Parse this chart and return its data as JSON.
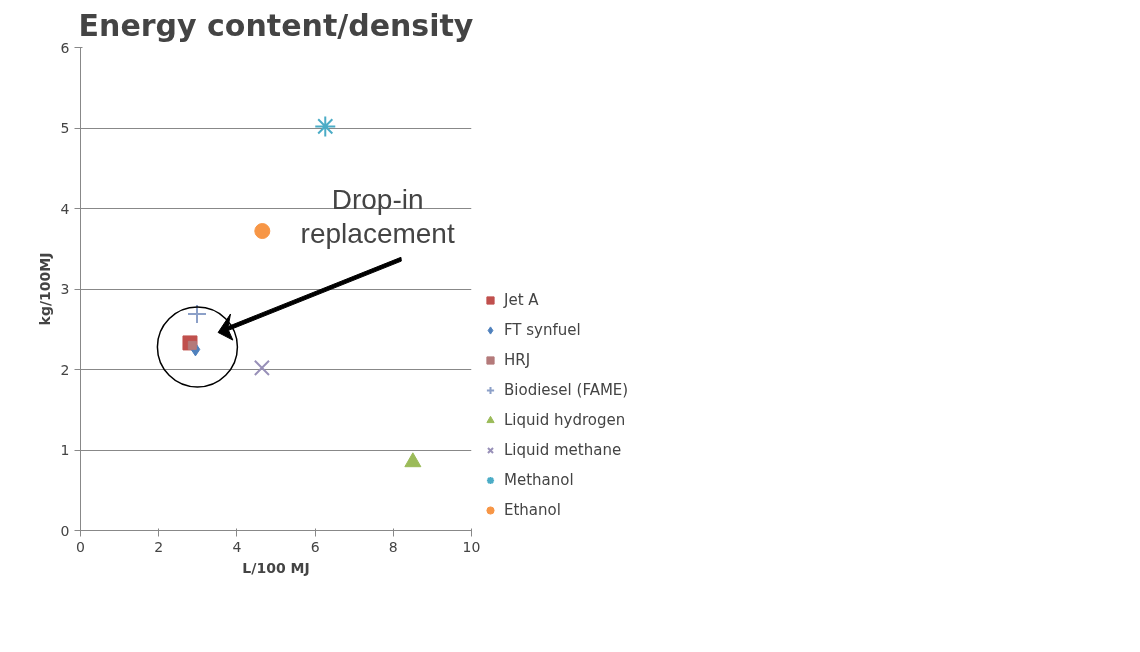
{
  "chart_data": {
    "type": "scatter",
    "title": "Energy content/density",
    "xlabel": "L/100 MJ",
    "ylabel": "kg/100MJ",
    "xlim": [
      0,
      10
    ],
    "xticks": [
      0,
      2,
      4,
      6,
      8,
      10
    ],
    "ylim": [
      0,
      6
    ],
    "yticks": [
      0,
      1,
      2,
      3,
      4,
      5,
      6
    ],
    "grid": "y",
    "legend": "right",
    "series": [
      {
        "name": "Jet A",
        "color": "#c0504d",
        "marker": "square",
        "x": [
          2.8
        ],
        "values": [
          2.33
        ]
      },
      {
        "name": "FT synfuel",
        "color": "#4f81bd",
        "marker": "diamond",
        "x": [
          2.94
        ],
        "values": [
          2.25
        ]
      },
      {
        "name": "HRJ",
        "color": "#b47a7a",
        "marker": "square",
        "x": [
          2.86
        ],
        "values": [
          2.3
        ]
      },
      {
        "name": "Biodiesel (FAME)",
        "color": "#8ca0c8",
        "marker": "cross",
        "x": [
          2.98
        ],
        "values": [
          2.69
        ]
      },
      {
        "name": "Liquid hydrogen",
        "color": "#9bbb59",
        "marker": "triangle",
        "x": [
          8.5
        ],
        "values": [
          0.85
        ]
      },
      {
        "name": "Liquid methane",
        "color": "#9890b8",
        "marker": "x",
        "x": [
          4.64
        ],
        "values": [
          2.02
        ]
      },
      {
        "name": "Methanol",
        "color": "#4bacc6",
        "marker": "cross",
        "x": [
          6.26
        ],
        "values": [
          5.02
        ]
      },
      {
        "name": "Ethanol",
        "color": "#f79646",
        "marker": "circle",
        "x": [
          4.65
        ],
        "values": [
          3.72
        ]
      }
    ],
    "annotations": [
      "Drop-in\nreplacement"
    ]
  }
}
